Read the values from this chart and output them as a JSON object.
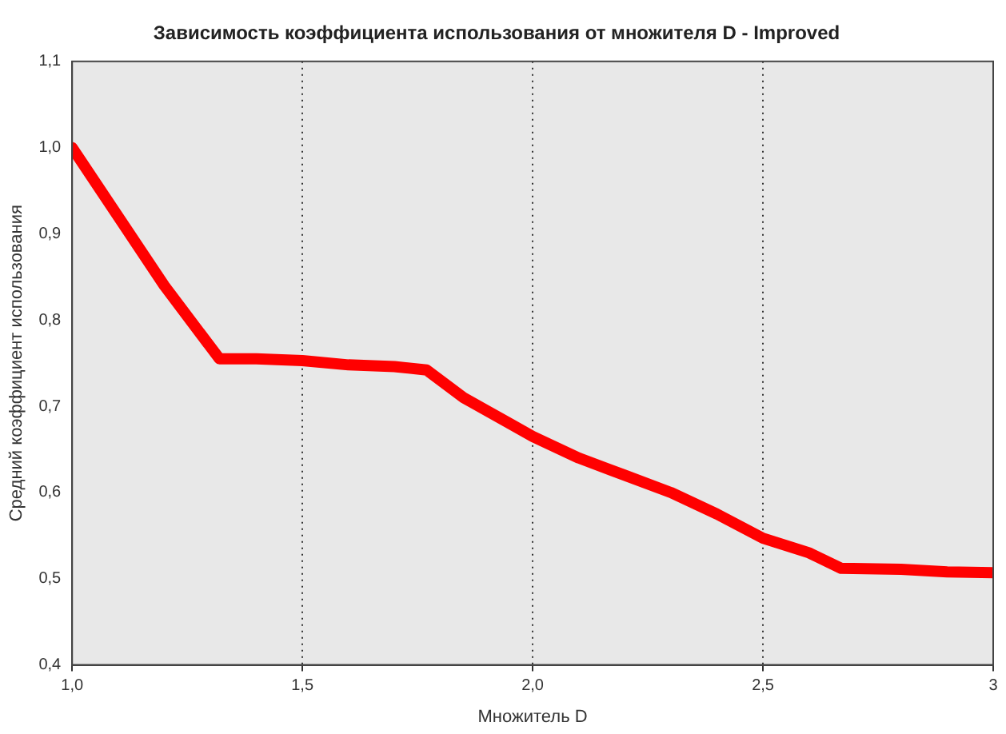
{
  "chart_data": {
    "type": "line",
    "title": "Зависимость коэффициента использования от множителя D - Improved",
    "xlabel": "Множитель D",
    "ylabel": "Средний коэффициент использования",
    "x": [
      1.0,
      1.1,
      1.2,
      1.32,
      1.4,
      1.5,
      1.6,
      1.7,
      1.77,
      1.85,
      1.95,
      2.0,
      2.1,
      2.2,
      2.3,
      2.4,
      2.5,
      2.6,
      2.67,
      2.8,
      2.9,
      3.0
    ],
    "series": [
      {
        "color": "#ff0000",
        "values": [
          1.0,
          0.92,
          0.84,
          0.755,
          0.755,
          0.753,
          0.748,
          0.746,
          0.742,
          0.71,
          0.68,
          0.665,
          0.64,
          0.62,
          0.6,
          0.575,
          0.547,
          0.53,
          0.512,
          0.511,
          0.508,
          0.507
        ]
      }
    ],
    "xlim": [
      1.0,
      3.0
    ],
    "ylim": [
      0.4,
      1.1
    ],
    "xticks": [
      {
        "value": 1.0,
        "label": "1,0"
      },
      {
        "value": 1.5,
        "label": "1,5"
      },
      {
        "value": 2.0,
        "label": "2,0"
      },
      {
        "value": 2.5,
        "label": "2,5"
      },
      {
        "value": 3.0,
        "label": "3"
      }
    ],
    "yticks": [
      {
        "value": 0.4,
        "label": "0,4"
      },
      {
        "value": 0.5,
        "label": "0,5"
      },
      {
        "value": 0.6,
        "label": "0,6"
      },
      {
        "value": 0.7,
        "label": "0,7"
      },
      {
        "value": 0.8,
        "label": "0,8"
      },
      {
        "value": 0.9,
        "label": "0,9"
      },
      {
        "value": 1.0,
        "label": "1,0"
      },
      {
        "value": 1.1,
        "label": "1,1"
      }
    ],
    "grid": "x",
    "legend": false,
    "marker": "none",
    "line_style": "solid"
  }
}
